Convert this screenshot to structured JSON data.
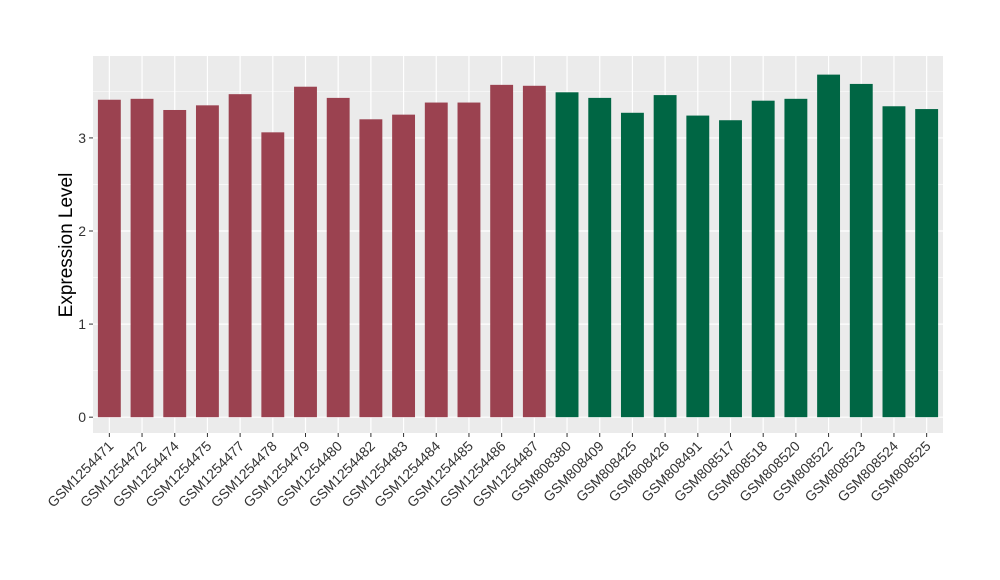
{
  "chart_data": {
    "type": "bar",
    "ylabel": "Expression Level",
    "xlabel": "",
    "ylim": [
      -0.17,
      3.88
    ],
    "yticks": [
      0,
      1,
      2,
      3
    ],
    "grid": true,
    "panel_background": "#EBEBEB",
    "grid_color": "#FFFFFF",
    "categories": [
      "GSM1254471",
      "GSM1254472",
      "GSM1254474",
      "GSM1254475",
      "GSM1254477",
      "GSM1254478",
      "GSM1254479",
      "GSM1254480",
      "GSM1254482",
      "GSM1254483",
      "GSM1254484",
      "GSM1254485",
      "GSM1254486",
      "GSM1254487",
      "GSM808380",
      "GSM808409",
      "GSM808425",
      "GSM808426",
      "GSM808491",
      "GSM808517",
      "GSM808518",
      "GSM808520",
      "GSM808522",
      "GSM808523",
      "GSM808524",
      "GSM808525"
    ],
    "values": [
      3.41,
      3.42,
      3.3,
      3.35,
      3.47,
      3.06,
      3.55,
      3.43,
      3.2,
      3.25,
      3.38,
      3.38,
      3.57,
      3.56,
      3.49,
      3.43,
      3.27,
      3.46,
      3.24,
      3.19,
      3.4,
      3.42,
      3.68,
      3.58,
      3.34,
      3.31
    ],
    "bar_colors": [
      "#9B4250",
      "#9B4250",
      "#9B4250",
      "#9B4250",
      "#9B4250",
      "#9B4250",
      "#9B4250",
      "#9B4250",
      "#9B4250",
      "#9B4250",
      "#9B4250",
      "#9B4250",
      "#9B4250",
      "#9B4250",
      "#006644",
      "#006644",
      "#006644",
      "#006644",
      "#006644",
      "#006644",
      "#006644",
      "#006644",
      "#006644",
      "#006644",
      "#006644",
      "#006644"
    ]
  }
}
